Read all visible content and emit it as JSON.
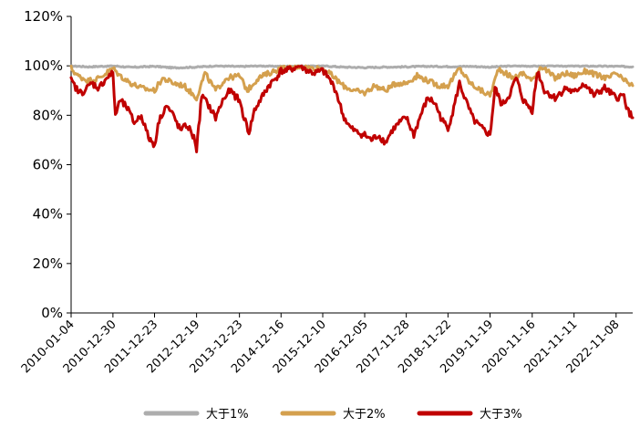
{
  "chart_data": {
    "type": "line",
    "title": "",
    "xlabel": "",
    "ylabel": "",
    "ylim": [
      0,
      120
    ],
    "y_unit": "%",
    "y_ticks": [
      "0%",
      "20%",
      "40%",
      "60%",
      "80%",
      "100%",
      "120%"
    ],
    "x_ticks": [
      "2010-01-04",
      "2010-12-30",
      "2011-12-23",
      "2012-12-19",
      "2013-12-23",
      "2014-12-16",
      "2015-12-10",
      "2016-12-05",
      "2017-11-28",
      "2018-11-22",
      "2019-11-19",
      "2020-11-16",
      "2021-11-11",
      "2022-11-08"
    ],
    "x_range": [
      "2010-01-04",
      "2023-03-31"
    ],
    "grid": false,
    "legend_position": "bottom",
    "series": [
      {
        "name": "大于1%",
        "color": "#ADADAD",
        "points": [
          [
            "2010-01-04",
            100
          ],
          [
            "2010-06-01",
            99.6
          ],
          [
            "2010-12-30",
            100
          ],
          [
            "2011-06-01",
            99.4
          ],
          [
            "2011-12-23",
            99.8
          ],
          [
            "2012-06-01",
            99.2
          ],
          [
            "2012-12-19",
            99.5
          ],
          [
            "2013-06-01",
            100
          ],
          [
            "2013-12-23",
            99.7
          ],
          [
            "2014-06-01",
            100
          ],
          [
            "2014-12-16",
            99.8
          ],
          [
            "2015-06-01",
            100
          ],
          [
            "2015-12-10",
            100
          ],
          [
            "2016-06-01",
            99.5
          ],
          [
            "2016-12-05",
            99.3
          ],
          [
            "2017-06-01",
            99.5
          ],
          [
            "2017-11-28",
            99.6
          ],
          [
            "2018-06-01",
            99.8
          ],
          [
            "2018-11-22",
            99.7
          ],
          [
            "2019-06-01",
            99.8
          ],
          [
            "2019-11-19",
            99.5
          ],
          [
            "2020-06-01",
            100
          ],
          [
            "2020-11-16",
            99.9
          ],
          [
            "2021-06-01",
            100
          ],
          [
            "2021-11-11",
            99.9
          ],
          [
            "2022-06-01",
            99.9
          ],
          [
            "2022-11-08",
            99.8
          ],
          [
            "2023-03-31",
            99.6
          ]
        ]
      },
      {
        "name": "大于2%",
        "color": "#D4A04E",
        "points": [
          [
            "2010-01-04",
            99
          ],
          [
            "2010-03-01",
            96
          ],
          [
            "2010-06-01",
            94
          ],
          [
            "2010-09-01",
            95
          ],
          [
            "2010-12-30",
            99
          ],
          [
            "2011-03-01",
            96
          ],
          [
            "2011-06-01",
            93
          ],
          [
            "2011-09-01",
            91
          ],
          [
            "2011-12-23",
            90
          ],
          [
            "2012-03-01",
            95
          ],
          [
            "2012-06-01",
            93
          ],
          [
            "2012-09-01",
            92
          ],
          [
            "2012-12-19",
            87
          ],
          [
            "2013-03-01",
            97
          ],
          [
            "2013-06-01",
            90
          ],
          [
            "2013-09-01",
            95
          ],
          [
            "2013-12-23",
            96
          ],
          [
            "2014-03-01",
            90
          ],
          [
            "2014-06-01",
            95
          ],
          [
            "2014-09-01",
            97
          ],
          [
            "2014-12-16",
            99
          ],
          [
            "2015-03-01",
            99
          ],
          [
            "2015-06-01",
            100
          ],
          [
            "2015-09-01",
            99
          ],
          [
            "2015-12-10",
            99
          ],
          [
            "2016-03-01",
            96
          ],
          [
            "2016-06-01",
            92
          ],
          [
            "2016-09-01",
            90
          ],
          [
            "2016-12-05",
            89
          ],
          [
            "2017-03-01",
            92
          ],
          [
            "2017-06-01",
            90
          ],
          [
            "2017-09-01",
            93
          ],
          [
            "2017-11-28",
            93
          ],
          [
            "2018-03-01",
            96
          ],
          [
            "2018-06-01",
            94
          ],
          [
            "2018-09-01",
            92
          ],
          [
            "2018-11-22",
            92
          ],
          [
            "2019-03-01",
            99
          ],
          [
            "2019-06-01",
            93
          ],
          [
            "2019-09-01",
            90
          ],
          [
            "2019-11-19",
            88
          ],
          [
            "2020-02-01",
            99
          ],
          [
            "2020-06-01",
            95
          ],
          [
            "2020-09-01",
            97
          ],
          [
            "2020-11-16",
            94
          ],
          [
            "2021-02-01",
            100
          ],
          [
            "2021-06-01",
            95
          ],
          [
            "2021-09-01",
            97
          ],
          [
            "2021-11-11",
            96
          ],
          [
            "2022-03-01",
            98
          ],
          [
            "2022-06-01",
            96
          ],
          [
            "2022-09-01",
            95
          ],
          [
            "2022-11-08",
            97
          ],
          [
            "2023-01-15",
            94
          ],
          [
            "2023-03-31",
            92
          ]
        ]
      },
      {
        "name": "大于3%",
        "color": "#C00000",
        "points": [
          [
            "2010-01-04",
            94
          ],
          [
            "2010-02-01",
            92
          ],
          [
            "2010-03-15",
            89
          ],
          [
            "2010-05-01",
            90
          ],
          [
            "2010-07-01",
            93
          ],
          [
            "2010-09-01",
            91
          ],
          [
            "2010-11-01",
            95
          ],
          [
            "2010-12-30",
            97
          ],
          [
            "2011-01-20",
            80
          ],
          [
            "2011-03-01",
            86
          ],
          [
            "2011-05-01",
            83
          ],
          [
            "2011-07-01",
            77
          ],
          [
            "2011-09-01",
            80
          ],
          [
            "2011-11-01",
            71
          ],
          [
            "2011-12-23",
            68
          ],
          [
            "2012-02-01",
            78
          ],
          [
            "2012-04-01",
            84
          ],
          [
            "2012-06-01",
            80
          ],
          [
            "2012-08-01",
            74
          ],
          [
            "2012-10-01",
            76
          ],
          [
            "2012-12-05",
            70
          ],
          [
            "2012-12-19",
            66
          ],
          [
            "2013-02-01",
            88
          ],
          [
            "2013-04-01",
            84
          ],
          [
            "2013-06-01",
            79
          ],
          [
            "2013-08-01",
            86
          ],
          [
            "2013-10-01",
            90
          ],
          [
            "2013-12-23",
            86
          ],
          [
            "2014-02-01",
            79
          ],
          [
            "2014-03-15",
            73
          ],
          [
            "2014-05-01",
            82
          ],
          [
            "2014-07-01",
            87
          ],
          [
            "2014-09-01",
            92
          ],
          [
            "2014-11-01",
            95
          ],
          [
            "2014-12-16",
            98
          ],
          [
            "2015-02-01",
            98
          ],
          [
            "2015-04-01",
            99
          ],
          [
            "2015-06-01",
            100
          ],
          [
            "2015-08-01",
            98
          ],
          [
            "2015-10-01",
            97
          ],
          [
            "2015-12-10",
            98
          ],
          [
            "2016-02-01",
            95
          ],
          [
            "2016-04-01",
            90
          ],
          [
            "2016-06-01",
            80
          ],
          [
            "2016-08-01",
            75
          ],
          [
            "2016-10-01",
            73
          ],
          [
            "2016-12-05",
            72
          ],
          [
            "2017-02-01",
            70
          ],
          [
            "2017-04-01",
            72
          ],
          [
            "2017-06-01",
            69
          ],
          [
            "2017-08-01",
            74
          ],
          [
            "2017-10-01",
            77
          ],
          [
            "2017-11-28",
            79
          ],
          [
            "2018-02-01",
            72
          ],
          [
            "2018-04-01",
            80
          ],
          [
            "2018-06-01",
            87
          ],
          [
            "2018-08-01",
            85
          ],
          [
            "2018-10-01",
            78
          ],
          [
            "2018-11-22",
            75
          ],
          [
            "2019-01-01",
            81
          ],
          [
            "2019-03-01",
            93
          ],
          [
            "2019-05-01",
            85
          ],
          [
            "2019-07-01",
            78
          ],
          [
            "2019-09-01",
            75
          ],
          [
            "2019-11-19",
            72
          ],
          [
            "2020-01-01",
            91
          ],
          [
            "2020-03-01",
            84
          ],
          [
            "2020-05-01",
            88
          ],
          [
            "2020-07-01",
            95
          ],
          [
            "2020-09-01",
            86
          ],
          [
            "2020-11-16",
            82
          ],
          [
            "2021-01-01",
            98
          ],
          [
            "2021-03-01",
            90
          ],
          [
            "2021-06-01",
            87
          ],
          [
            "2021-09-01",
            91
          ],
          [
            "2021-11-11",
            89
          ],
          [
            "2022-02-01",
            93
          ],
          [
            "2022-05-01",
            88
          ],
          [
            "2022-08-01",
            91
          ],
          [
            "2022-11-08",
            87
          ],
          [
            "2023-01-15",
            88
          ],
          [
            "2023-02-15",
            82
          ],
          [
            "2023-03-31",
            79
          ]
        ]
      }
    ]
  }
}
